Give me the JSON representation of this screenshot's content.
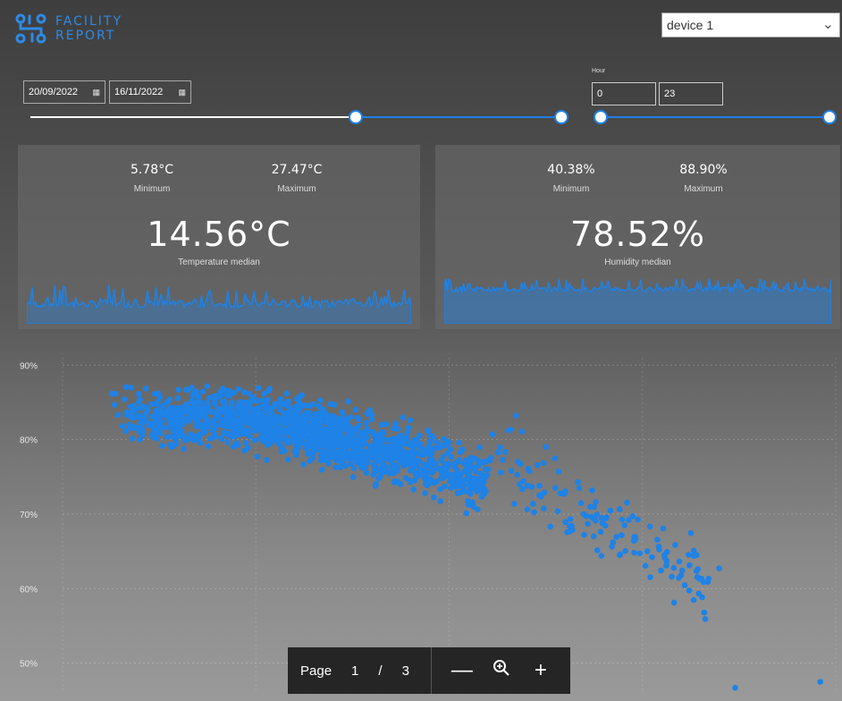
{
  "logo": {
    "line1": "FACILITY",
    "line2": "REPORT"
  },
  "device_select": {
    "value": "device 1"
  },
  "date_range": {
    "start": "20/09/2022",
    "end": "16/11/2022",
    "slider_fraction_left": 0.61,
    "slider_fraction_right": 1.0
  },
  "hour_filter": {
    "label": "Hour",
    "min": "0",
    "max": "23"
  },
  "temperature": {
    "min_value": "5.78°C",
    "min_label": "Minimum",
    "max_value": "27.47°C",
    "max_label": "Maximum",
    "median_value": "14.56°C",
    "median_label": "Temperature median"
  },
  "humidity": {
    "min_value": "40.38%",
    "min_label": "Minimum",
    "max_value": "88.90%",
    "max_label": "Maximum",
    "median_value": "78.52%",
    "median_label": "Humidity median"
  },
  "chart_data": {
    "type": "scatter",
    "ylim": [
      46,
      91
    ],
    "y_ticks": [
      "90%",
      "80%",
      "70%",
      "60%",
      "50%"
    ],
    "y_tick_values": [
      90,
      80,
      70,
      60,
      50
    ],
    "x_range": [
      0,
      100
    ],
    "grid": true,
    "color": "#1e82e6"
  },
  "pager": {
    "page_label": "Page",
    "current": "1",
    "separator": "/",
    "total": "3"
  },
  "colors": {
    "accent": "#1e82e6",
    "logo": "#2e8ae6"
  }
}
